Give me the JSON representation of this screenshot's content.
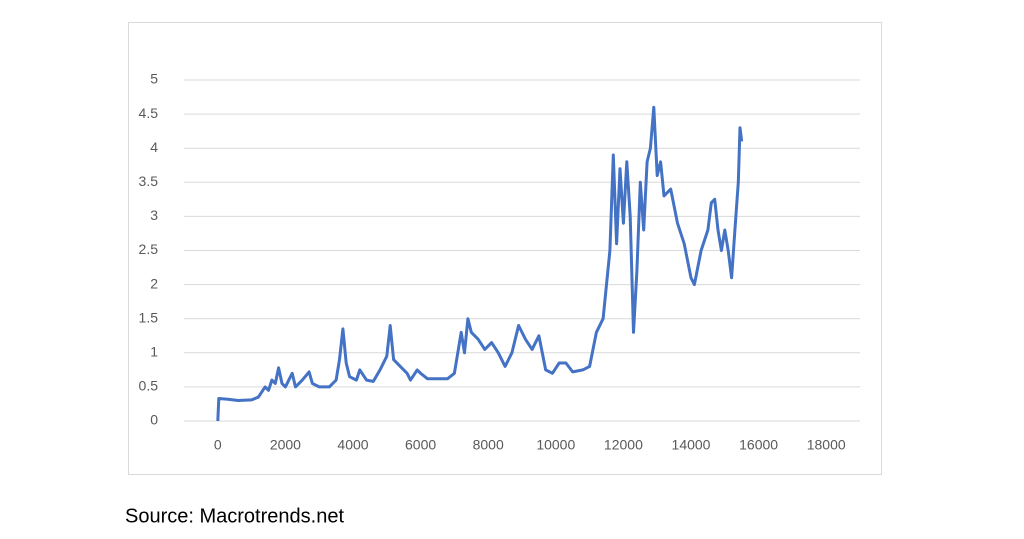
{
  "chart_data": {
    "type": "line",
    "source": "Source: Macrotrends.net",
    "color": "#4472c4",
    "grid": true,
    "xlim": [
      -1000,
      19000
    ],
    "xticks": [
      0,
      2000,
      4000,
      6000,
      8000,
      10000,
      12000,
      14000,
      16000,
      18000
    ],
    "ylim": [
      0,
      5
    ],
    "yticks": [
      0,
      0.5,
      1,
      1.5,
      2,
      2.5,
      3,
      3.5,
      4,
      4.5,
      5
    ],
    "x": [
      0,
      30,
      300,
      600,
      1000,
      1200,
      1400,
      1500,
      1600,
      1700,
      1800,
      1900,
      2000,
      2100,
      2200,
      2300,
      2500,
      2700,
      2800,
      3000,
      3300,
      3500,
      3600,
      3700,
      3800,
      3900,
      4100,
      4200,
      4400,
      4600,
      4800,
      5000,
      5100,
      5200,
      5400,
      5600,
      5700,
      5900,
      6000,
      6200,
      6500,
      6800,
      7000,
      7200,
      7300,
      7400,
      7500,
      7700,
      7900,
      8100,
      8300,
      8500,
      8700,
      8900,
      9100,
      9300,
      9500,
      9700,
      9900,
      10100,
      10300,
      10500,
      10800,
      11000,
      11200,
      11400,
      11600,
      11700,
      11800,
      11900,
      12000,
      12100,
      12200,
      12300,
      12400,
      12500,
      12600,
      12700,
      12800,
      12900,
      13000,
      13100,
      13200,
      13400,
      13600,
      13800,
      14000,
      14100,
      14300,
      14500,
      14600,
      14700,
      14800,
      14900,
      15000,
      15100,
      15200,
      15300,
      15400,
      15450,
      15500
    ],
    "values": [
      0,
      0.33,
      0.32,
      0.3,
      0.31,
      0.35,
      0.5,
      0.45,
      0.6,
      0.55,
      0.78,
      0.55,
      0.5,
      0.6,
      0.7,
      0.5,
      0.6,
      0.72,
      0.55,
      0.5,
      0.5,
      0.6,
      0.9,
      1.35,
      0.85,
      0.65,
      0.6,
      0.75,
      0.6,
      0.58,
      0.75,
      0.95,
      1.4,
      0.9,
      0.8,
      0.7,
      0.6,
      0.75,
      0.7,
      0.62,
      0.62,
      0.62,
      0.7,
      1.3,
      1.0,
      1.5,
      1.3,
      1.2,
      1.05,
      1.15,
      1.0,
      0.8,
      1.0,
      1.4,
      1.2,
      1.05,
      1.25,
      0.75,
      0.7,
      0.85,
      0.85,
      0.72,
      0.75,
      0.8,
      1.3,
      1.5,
      2.5,
      3.9,
      2.6,
      3.7,
      2.9,
      3.8,
      3.0,
      1.3,
      2.2,
      3.5,
      2.8,
      3.8,
      4.0,
      4.6,
      3.6,
      3.8,
      3.3,
      3.4,
      2.9,
      2.6,
      2.1,
      2.0,
      2.5,
      2.8,
      3.2,
      3.25,
      2.8,
      2.5,
      2.8,
      2.5,
      2.1,
      2.8,
      3.5,
      4.3,
      4.1
    ]
  }
}
